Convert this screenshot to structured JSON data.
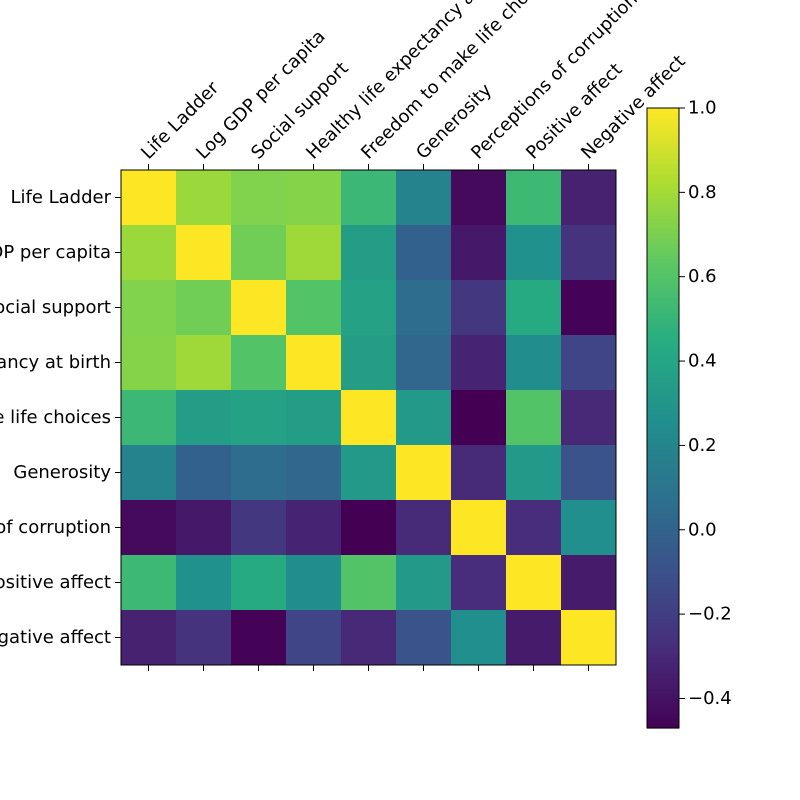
{
  "chart_data": {
    "type": "heatmap",
    "labels": [
      "Life Ladder",
      "Log GDP per capita",
      "Social support",
      "Healthy life expectancy at birth",
      "Freedom to make life choices",
      "Generosity",
      "Perceptions of corruption",
      "Positive affect",
      "Negative affect"
    ],
    "values": [
      [
        1.0,
        0.78,
        0.72,
        0.73,
        0.52,
        0.19,
        -0.43,
        0.53,
        -0.33
      ],
      [
        0.78,
        1.0,
        0.68,
        0.79,
        0.35,
        -0.01,
        -0.37,
        0.27,
        -0.25
      ],
      [
        0.72,
        0.68,
        1.0,
        0.6,
        0.38,
        0.06,
        -0.23,
        0.43,
        -0.46
      ],
      [
        0.73,
        0.79,
        0.6,
        1.0,
        0.35,
        0.02,
        -0.32,
        0.25,
        -0.16
      ],
      [
        0.52,
        0.35,
        0.38,
        0.35,
        1.0,
        0.32,
        -0.47,
        0.6,
        -0.3
      ],
      [
        0.19,
        -0.01,
        0.06,
        0.02,
        0.32,
        1.0,
        -0.29,
        0.32,
        -0.09
      ],
      [
        -0.43,
        -0.37,
        -0.23,
        -0.32,
        -0.47,
        -0.29,
        1.0,
        -0.28,
        0.26
      ],
      [
        0.53,
        0.27,
        0.43,
        0.25,
        0.6,
        0.32,
        -0.28,
        1.0,
        -0.36
      ],
      [
        -0.33,
        -0.25,
        -0.46,
        -0.16,
        -0.3,
        -0.09,
        0.26,
        -0.36,
        1.0
      ]
    ],
    "colormap": "viridis",
    "vmin": -0.47,
    "vmax": 1.0,
    "colorbar_ticks": [
      "1.0",
      "0.8",
      "0.6",
      "0.4",
      "0.2",
      "0.0",
      "−0.2",
      "−0.4"
    ],
    "colorbar_tick_values": [
      1.0,
      0.8,
      0.6,
      0.4,
      0.2,
      0.0,
      -0.2,
      -0.4
    ],
    "title": "",
    "xlabel": "",
    "ylabel": ""
  }
}
